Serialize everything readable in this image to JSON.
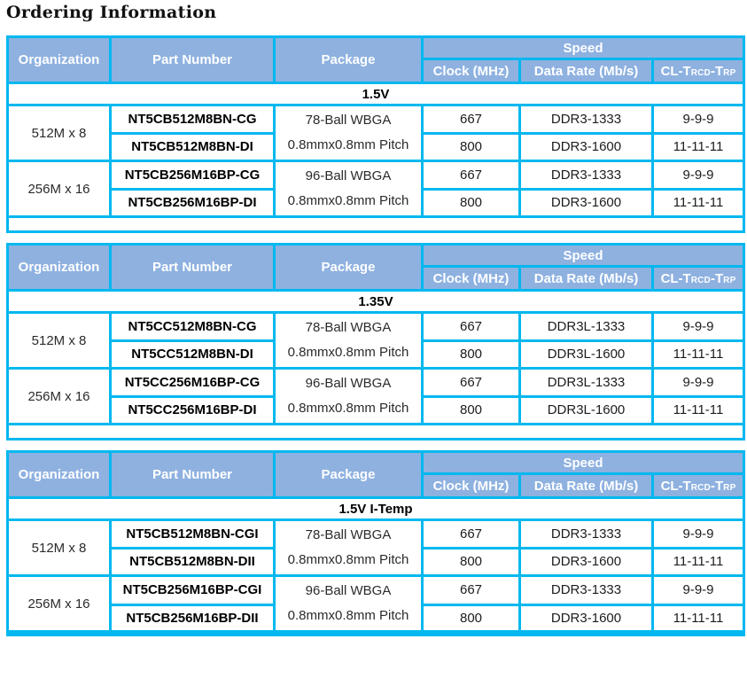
{
  "page_title": "Ordering Information",
  "colors": {
    "header_bg": "#8EB1E0",
    "table_border": "#00B8EF",
    "header_text": "#FFFFFF",
    "body_text": "#000000"
  },
  "columns": {
    "organization": "Organization",
    "part_number": "Part Number",
    "package": "Package",
    "speed": "Speed",
    "clock": "Clock (MHz)",
    "data_rate": "Data Rate (Mb/s)",
    "cl_prefix": "CL-T",
    "cl_sub1": "RCD",
    "cl_mid": "-T",
    "cl_sub2": "RP"
  },
  "tables": [
    {
      "voltage": "1.5V",
      "groups": [
        {
          "organization": "512M x 8",
          "package_lines": [
            "78-Ball WBGA",
            "0.8mmx0.8mm Pitch"
          ],
          "rows": [
            {
              "part_number": "NT5CB512M8BN-CG",
              "clock": "667",
              "data_rate": "DDR3-1333",
              "cl": "9-9-9"
            },
            {
              "part_number": "NT5CB512M8BN-DI",
              "clock": "800",
              "data_rate": "DDR3-1600",
              "cl": "11-11-11"
            }
          ]
        },
        {
          "organization": "256M x 16",
          "package_lines": [
            "96-Ball WBGA",
            "0.8mmx0.8mm Pitch"
          ],
          "rows": [
            {
              "part_number": "NT5CB256M16BP-CG",
              "clock": "667",
              "data_rate": "DDR3-1333",
              "cl": "9-9-9"
            },
            {
              "part_number": "NT5CB256M16BP-DI",
              "clock": "800",
              "data_rate": "DDR3-1600",
              "cl": "11-11-11"
            }
          ]
        }
      ]
    },
    {
      "voltage": "1.35V",
      "groups": [
        {
          "organization": "512M x 8",
          "package_lines": [
            "78-Ball WBGA",
            "0.8mmx0.8mm Pitch"
          ],
          "rows": [
            {
              "part_number": "NT5CC512M8BN-CG",
              "clock": "667",
              "data_rate": "DDR3L-1333",
              "cl": "9-9-9"
            },
            {
              "part_number": "NT5CC512M8BN-DI",
              "clock": "800",
              "data_rate": "DDR3L-1600",
              "cl": "11-11-11"
            }
          ]
        },
        {
          "organization": "256M x 16",
          "package_lines": [
            "96-Ball WBGA",
            "0.8mmx0.8mm Pitch"
          ],
          "rows": [
            {
              "part_number": "NT5CC256M16BP-CG",
              "clock": "667",
              "data_rate": "DDR3L-1333",
              "cl": "9-9-9"
            },
            {
              "part_number": "NT5CC256M16BP-DI",
              "clock": "800",
              "data_rate": "DDR3L-1600",
              "cl": "11-11-11"
            }
          ]
        }
      ]
    },
    {
      "voltage": "1.5V I-Temp",
      "groups": [
        {
          "organization": "512M x 8",
          "package_lines": [
            "78-Ball WBGA",
            "0.8mmx0.8mm Pitch"
          ],
          "rows": [
            {
              "part_number": "NT5CB512M8BN-CGI",
              "clock": "667",
              "data_rate": "DDR3-1333",
              "cl": "9-9-9"
            },
            {
              "part_number": "NT5CB512M8BN-DII",
              "clock": "800",
              "data_rate": "DDR3-1600",
              "cl": "11-11-11"
            }
          ]
        },
        {
          "organization": "256M x 16",
          "package_lines": [
            "96-Ball WBGA",
            "0.8mmx0.8mm Pitch"
          ],
          "rows": [
            {
              "part_number": "NT5CB256M16BP-CGI",
              "clock": "667",
              "data_rate": "DDR3-1333",
              "cl": "9-9-9"
            },
            {
              "part_number": "NT5CB256M16BP-DII",
              "clock": "800",
              "data_rate": "DDR3-1600",
              "cl": "11-11-11"
            }
          ]
        }
      ]
    }
  ]
}
